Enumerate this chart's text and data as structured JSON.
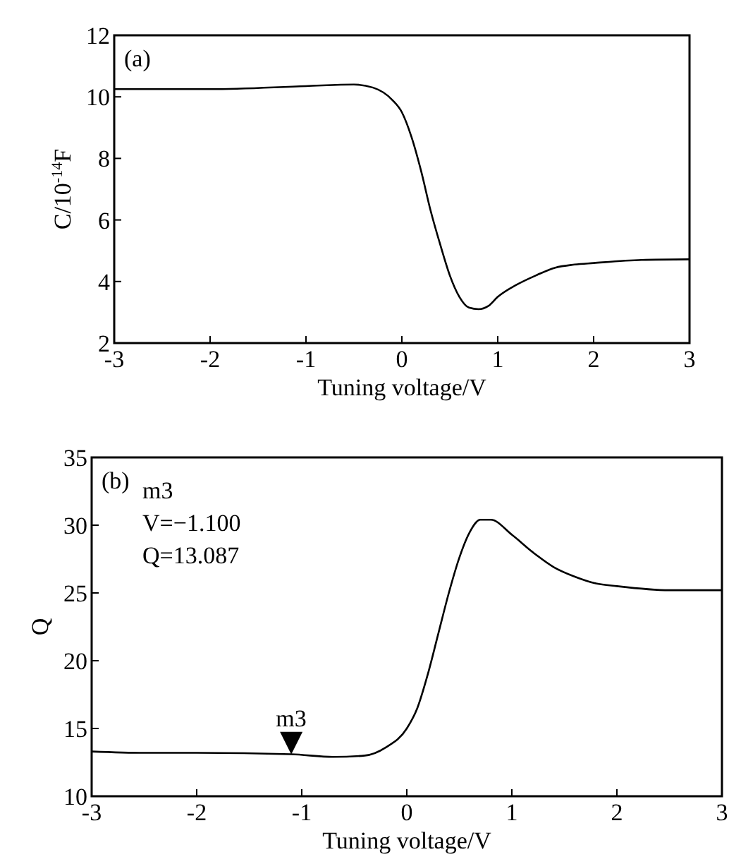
{
  "chart_data": [
    {
      "type": "line",
      "xlabel": "Tuning voltage/V",
      "ylabel": "C/10$^{-14}$F",
      "xlim": [
        -3,
        3
      ],
      "xticks": [
        -3,
        -2,
        -1,
        0,
        1,
        2,
        3
      ],
      "ylim": [
        2,
        12
      ],
      "yticks": [
        2,
        4,
        6,
        8,
        10,
        12
      ],
      "grid": false,
      "marker": "none",
      "line_style": "solid",
      "annotations": [
        "(a)"
      ],
      "x": [
        -3,
        -2,
        -1,
        -0.5,
        -0.3,
        -0.1,
        0,
        0.1,
        0.2,
        0.3,
        0.4,
        0.5,
        0.6,
        0.7,
        0.8,
        0.9,
        1.0,
        1.2,
        1.4,
        1.6,
        1.8,
        2.0,
        2.5,
        3
      ],
      "series": [
        {
          "color": "#000000",
          "values": [
            10.25,
            10.25,
            10.35,
            10.4,
            10.3,
            9.9,
            9.5,
            8.7,
            7.6,
            6.3,
            5.2,
            4.2,
            3.5,
            3.15,
            3.1,
            3.2,
            3.5,
            3.9,
            4.2,
            4.45,
            4.55,
            4.6,
            4.7,
            4.72
          ]
        }
      ]
    },
    {
      "type": "line",
      "xlabel": "Tuning voltage/V",
      "ylabel": "Q",
      "xlim": [
        -3,
        3
      ],
      "xticks": [
        -3,
        -2,
        -1,
        0,
        1,
        2,
        3
      ],
      "ylim": [
        10,
        35
      ],
      "yticks": [
        10,
        15,
        20,
        25,
        30,
        35
      ],
      "grid": false,
      "marker": "none",
      "line_style": "solid",
      "annotations": [
        "(b)",
        "m3",
        "V=−1.100",
        "Q=13.087",
        {
          "text": "m3",
          "x": -1.1,
          "y": 13.087
        }
      ],
      "x": [
        -3,
        -2.5,
        -2,
        -1.1,
        -0.7,
        -0.4,
        -0.2,
        0,
        0.1,
        0.2,
        0.3,
        0.4,
        0.5,
        0.6,
        0.7,
        0.8,
        1.0,
        1.2,
        1.4,
        1.6,
        1.8,
        2.0,
        2.5,
        3
      ],
      "series": [
        {
          "color": "#000000",
          "values": [
            13.3,
            13.2,
            13.2,
            13.1,
            12.9,
            13.0,
            13.6,
            15.0,
            16.5,
            19,
            22,
            25,
            27.6,
            29.5,
            30.4,
            30.4,
            29.3,
            28,
            26.9,
            26.2,
            25.7,
            25.5,
            25.2,
            25.2
          ]
        }
      ]
    }
  ]
}
